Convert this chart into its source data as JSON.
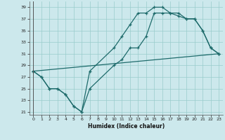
{
  "xlabel": "Humidex (Indice chaleur)",
  "xlim": [
    -0.5,
    23.5
  ],
  "ylim": [
    20.5,
    40
  ],
  "yticks": [
    21,
    23,
    25,
    27,
    29,
    31,
    33,
    35,
    37,
    39
  ],
  "xticks": [
    0,
    1,
    2,
    3,
    4,
    5,
    6,
    7,
    8,
    9,
    10,
    11,
    12,
    13,
    14,
    15,
    16,
    17,
    18,
    19,
    20,
    21,
    22,
    23
  ],
  "bg_color": "#cce8ec",
  "line_color": "#1e6b6b",
  "grid_color": "#99cccc",
  "line1_x": [
    0,
    1,
    2,
    3,
    4,
    5,
    6,
    7,
    10,
    11,
    12,
    13,
    14,
    15,
    16,
    17,
    18,
    19,
    20,
    21,
    22,
    23
  ],
  "line1_y": [
    28,
    27,
    25,
    25,
    24,
    22,
    21,
    28,
    32,
    34,
    36,
    38,
    38,
    39,
    39,
    38,
    38,
    37,
    37,
    35,
    32,
    31
  ],
  "line2_x": [
    0,
    1,
    2,
    3,
    4,
    5,
    6,
    7,
    10,
    11,
    12,
    13,
    14,
    15,
    16,
    17,
    18,
    19,
    20,
    21,
    22,
    23
  ],
  "line2_y": [
    28,
    27,
    25,
    25,
    24,
    22,
    21,
    25,
    29,
    30,
    32,
    32,
    34,
    38,
    38,
    38,
    37.5,
    37,
    37,
    35,
    32,
    31
  ],
  "line3_x": [
    0,
    23
  ],
  "line3_y": [
    28,
    31
  ]
}
